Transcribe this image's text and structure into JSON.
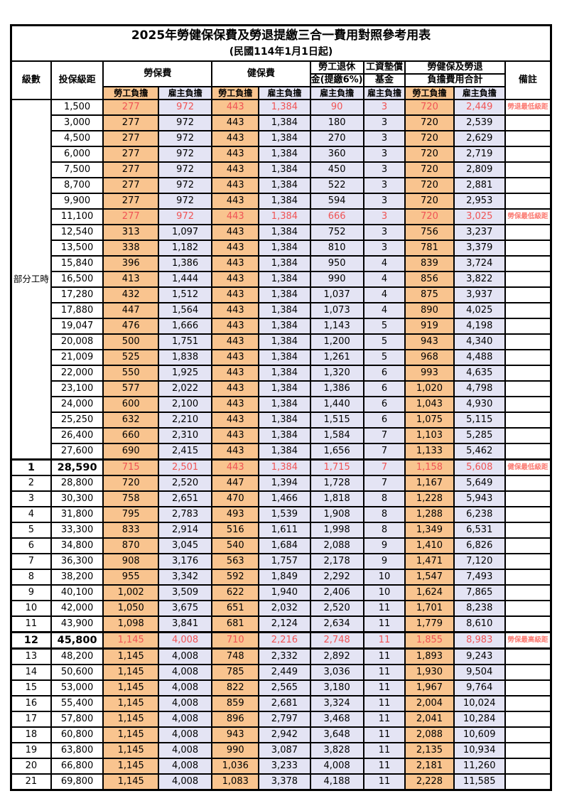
{
  "title": "2025年勞健保保費及勞退提繳三合一費用對照參考用表",
  "subtitle": "(民國114年1月1日起)",
  "colors": {
    "employee_bg": "#F9C48F",
    "employer_bg": "#E4E4F4",
    "highlight_text": "#F05455",
    "note_text": "#FB7B72"
  },
  "table": {
    "header": {
      "level": "級數",
      "bracket": "投保級距",
      "labor_insurance": "勞保費",
      "health_insurance": "健保費",
      "pension_line1": "勞工退休",
      "pension_line2": "金(提繳6%)",
      "wage_fund_line1": "工資墊償",
      "wage_fund_line2": "基金",
      "total_line1": "勞健保及勞退",
      "total_line2": "負擔費用合計",
      "note": "備註"
    },
    "subheader": {
      "employee": "勞工負擔",
      "employer": "雇主負擔"
    },
    "part_time_label": "部分工時",
    "rows": [
      {
        "level": "",
        "bracket": "1,500",
        "values": [
          "277",
          "972",
          "443",
          "1,384",
          "90",
          "3",
          "720",
          "2,449"
        ],
        "note": "勞退最低級距",
        "red": true,
        "emph": false,
        "section": false
      },
      {
        "level": "",
        "bracket": "3,000",
        "values": [
          "277",
          "972",
          "443",
          "1,384",
          "180",
          "3",
          "720",
          "2,539"
        ],
        "note": "",
        "red": false,
        "emph": false,
        "section": false
      },
      {
        "level": "",
        "bracket": "4,500",
        "values": [
          "277",
          "972",
          "443",
          "1,384",
          "270",
          "3",
          "720",
          "2,629"
        ],
        "note": "",
        "red": false,
        "emph": false,
        "section": false
      },
      {
        "level": "",
        "bracket": "6,000",
        "values": [
          "277",
          "972",
          "443",
          "1,384",
          "360",
          "3",
          "720",
          "2,719"
        ],
        "note": "",
        "red": false,
        "emph": false,
        "section": false
      },
      {
        "level": "",
        "bracket": "7,500",
        "values": [
          "277",
          "972",
          "443",
          "1,384",
          "450",
          "3",
          "720",
          "2,809"
        ],
        "note": "",
        "red": false,
        "emph": false,
        "section": false
      },
      {
        "level": "",
        "bracket": "8,700",
        "values": [
          "277",
          "972",
          "443",
          "1,384",
          "522",
          "3",
          "720",
          "2,881"
        ],
        "note": "",
        "red": false,
        "emph": false,
        "section": false
      },
      {
        "level": "",
        "bracket": "9,900",
        "values": [
          "277",
          "972",
          "443",
          "1,384",
          "594",
          "3",
          "720",
          "2,953"
        ],
        "note": "",
        "red": false,
        "emph": false,
        "section": false
      },
      {
        "level": "",
        "bracket": "11,100",
        "values": [
          "277",
          "972",
          "443",
          "1,384",
          "666",
          "3",
          "720",
          "3,025"
        ],
        "note": "勞保最低級距",
        "red": true,
        "emph": false,
        "section": false
      },
      {
        "level": "",
        "bracket": "12,540",
        "values": [
          "313",
          "1,097",
          "443",
          "1,384",
          "752",
          "3",
          "756",
          "3,237"
        ],
        "note": "",
        "red": false,
        "emph": false,
        "section": false
      },
      {
        "level": "",
        "bracket": "13,500",
        "values": [
          "338",
          "1,182",
          "443",
          "1,384",
          "810",
          "3",
          "781",
          "3,379"
        ],
        "note": "",
        "red": false,
        "emph": false,
        "section": false
      },
      {
        "level": "",
        "bracket": "15,840",
        "values": [
          "396",
          "1,386",
          "443",
          "1,384",
          "950",
          "4",
          "839",
          "3,724"
        ],
        "note": "",
        "red": false,
        "emph": false,
        "section": false
      },
      {
        "level": "",
        "bracket": "16,500",
        "values": [
          "413",
          "1,444",
          "443",
          "1,384",
          "990",
          "4",
          "856",
          "3,822"
        ],
        "note": "",
        "red": false,
        "emph": false,
        "section": false
      },
      {
        "level": "",
        "bracket": "17,280",
        "values": [
          "432",
          "1,512",
          "443",
          "1,384",
          "1,037",
          "4",
          "875",
          "3,937"
        ],
        "note": "",
        "red": false,
        "emph": false,
        "section": false
      },
      {
        "level": "",
        "bracket": "17,880",
        "values": [
          "447",
          "1,564",
          "443",
          "1,384",
          "1,073",
          "4",
          "890",
          "4,025"
        ],
        "note": "",
        "red": false,
        "emph": false,
        "section": false
      },
      {
        "level": "",
        "bracket": "19,047",
        "values": [
          "476",
          "1,666",
          "443",
          "1,384",
          "1,143",
          "5",
          "919",
          "4,198"
        ],
        "note": "",
        "red": false,
        "emph": false,
        "section": false
      },
      {
        "level": "",
        "bracket": "20,008",
        "values": [
          "500",
          "1,751",
          "443",
          "1,384",
          "1,200",
          "5",
          "943",
          "4,340"
        ],
        "note": "",
        "red": false,
        "emph": false,
        "section": false
      },
      {
        "level": "",
        "bracket": "21,009",
        "values": [
          "525",
          "1,838",
          "443",
          "1,384",
          "1,261",
          "5",
          "968",
          "4,488"
        ],
        "note": "",
        "red": false,
        "emph": false,
        "section": false
      },
      {
        "level": "",
        "bracket": "22,000",
        "values": [
          "550",
          "1,925",
          "443",
          "1,384",
          "1,320",
          "6",
          "993",
          "4,635"
        ],
        "note": "",
        "red": false,
        "emph": false,
        "section": false
      },
      {
        "level": "",
        "bracket": "23,100",
        "values": [
          "577",
          "2,022",
          "443",
          "1,384",
          "1,386",
          "6",
          "1,020",
          "4,798"
        ],
        "note": "",
        "red": false,
        "emph": false,
        "section": false
      },
      {
        "level": "",
        "bracket": "24,000",
        "values": [
          "600",
          "2,100",
          "443",
          "1,384",
          "1,440",
          "6",
          "1,043",
          "4,930"
        ],
        "note": "",
        "red": false,
        "emph": false,
        "section": false
      },
      {
        "level": "",
        "bracket": "25,250",
        "values": [
          "632",
          "2,210",
          "443",
          "1,384",
          "1,515",
          "6",
          "1,075",
          "5,115"
        ],
        "note": "",
        "red": false,
        "emph": false,
        "section": false
      },
      {
        "level": "",
        "bracket": "26,400",
        "values": [
          "660",
          "2,310",
          "443",
          "1,384",
          "1,584",
          "7",
          "1,103",
          "5,285"
        ],
        "note": "",
        "red": false,
        "emph": false,
        "section": false
      },
      {
        "level": "",
        "bracket": "27,600",
        "values": [
          "690",
          "2,415",
          "443",
          "1,384",
          "1,656",
          "7",
          "1,133",
          "5,462"
        ],
        "note": "",
        "red": false,
        "emph": false,
        "section": false
      },
      {
        "level": "1",
        "bracket": "28,590",
        "values": [
          "715",
          "2,501",
          "443",
          "1,384",
          "1,715",
          "7",
          "1,158",
          "5,608"
        ],
        "note": "健保最低級距",
        "red": true,
        "emph": true,
        "section": true
      },
      {
        "level": "2",
        "bracket": "28,800",
        "values": [
          "720",
          "2,520",
          "447",
          "1,394",
          "1,728",
          "7",
          "1,167",
          "5,649"
        ],
        "note": "",
        "red": false,
        "emph": false,
        "section": false
      },
      {
        "level": "3",
        "bracket": "30,300",
        "values": [
          "758",
          "2,651",
          "470",
          "1,466",
          "1,818",
          "8",
          "1,228",
          "5,943"
        ],
        "note": "",
        "red": false,
        "emph": false,
        "section": false
      },
      {
        "level": "4",
        "bracket": "31,800",
        "values": [
          "795",
          "2,783",
          "493",
          "1,539",
          "1,908",
          "8",
          "1,288",
          "6,238"
        ],
        "note": "",
        "red": false,
        "emph": false,
        "section": false
      },
      {
        "level": "5",
        "bracket": "33,300",
        "values": [
          "833",
          "2,914",
          "516",
          "1,611",
          "1,998",
          "8",
          "1,349",
          "6,531"
        ],
        "note": "",
        "red": false,
        "emph": false,
        "section": false
      },
      {
        "level": "6",
        "bracket": "34,800",
        "values": [
          "870",
          "3,045",
          "540",
          "1,684",
          "2,088",
          "9",
          "1,410",
          "6,826"
        ],
        "note": "",
        "red": false,
        "emph": false,
        "section": false
      },
      {
        "level": "7",
        "bracket": "36,300",
        "values": [
          "908",
          "3,176",
          "563",
          "1,757",
          "2,178",
          "9",
          "1,471",
          "7,120"
        ],
        "note": "",
        "red": false,
        "emph": false,
        "section": false
      },
      {
        "level": "8",
        "bracket": "38,200",
        "values": [
          "955",
          "3,342",
          "592",
          "1,849",
          "2,292",
          "10",
          "1,547",
          "7,493"
        ],
        "note": "",
        "red": false,
        "emph": false,
        "section": false
      },
      {
        "level": "9",
        "bracket": "40,100",
        "values": [
          "1,002",
          "3,509",
          "622",
          "1,940",
          "2,406",
          "10",
          "1,624",
          "7,865"
        ],
        "note": "",
        "red": false,
        "emph": false,
        "section": false
      },
      {
        "level": "10",
        "bracket": "42,000",
        "values": [
          "1,050",
          "3,675",
          "651",
          "2,032",
          "2,520",
          "11",
          "1,701",
          "8,238"
        ],
        "note": "",
        "red": false,
        "emph": false,
        "section": false
      },
      {
        "level": "11",
        "bracket": "43,900",
        "values": [
          "1,098",
          "3,841",
          "681",
          "2,124",
          "2,634",
          "11",
          "1,779",
          "8,610"
        ],
        "note": "",
        "red": false,
        "emph": false,
        "section": false
      },
      {
        "level": "12",
        "bracket": "45,800",
        "values": [
          "1,145",
          "4,008",
          "710",
          "2,216",
          "2,748",
          "11",
          "1,855",
          "8,983"
        ],
        "note": "勞保最高級距",
        "red": true,
        "emph": true,
        "section": true,
        "section_bottom": true
      },
      {
        "level": "13",
        "bracket": "48,200",
        "values": [
          "1,145",
          "4,008",
          "748",
          "2,332",
          "2,892",
          "11",
          "1,893",
          "9,243"
        ],
        "note": "",
        "red": false,
        "emph": false,
        "section": false
      },
      {
        "level": "14",
        "bracket": "50,600",
        "values": [
          "1,145",
          "4,008",
          "785",
          "2,449",
          "3,036",
          "11",
          "1,930",
          "9,504"
        ],
        "note": "",
        "red": false,
        "emph": false,
        "section": false
      },
      {
        "level": "15",
        "bracket": "53,000",
        "values": [
          "1,145",
          "4,008",
          "822",
          "2,565",
          "3,180",
          "11",
          "1,967",
          "9,764"
        ],
        "note": "",
        "red": false,
        "emph": false,
        "section": false
      },
      {
        "level": "16",
        "bracket": "55,400",
        "values": [
          "1,145",
          "4,008",
          "859",
          "2,681",
          "3,324",
          "11",
          "2,004",
          "10,024"
        ],
        "note": "",
        "red": false,
        "emph": false,
        "section": false
      },
      {
        "level": "17",
        "bracket": "57,800",
        "values": [
          "1,145",
          "4,008",
          "896",
          "2,797",
          "3,468",
          "11",
          "2,041",
          "10,284"
        ],
        "note": "",
        "red": false,
        "emph": false,
        "section": false
      },
      {
        "level": "18",
        "bracket": "60,800",
        "values": [
          "1,145",
          "4,008",
          "943",
          "2,942",
          "3,648",
          "11",
          "2,088",
          "10,609"
        ],
        "note": "",
        "red": false,
        "emph": false,
        "section": false
      },
      {
        "level": "19",
        "bracket": "63,800",
        "values": [
          "1,145",
          "4,008",
          "990",
          "3,087",
          "3,828",
          "11",
          "2,135",
          "10,934"
        ],
        "note": "",
        "red": false,
        "emph": false,
        "section": false
      },
      {
        "level": "20",
        "bracket": "66,800",
        "values": [
          "1,145",
          "4,008",
          "1,036",
          "3,233",
          "4,008",
          "11",
          "2,181",
          "11,260"
        ],
        "note": "",
        "red": false,
        "emph": false,
        "section": false
      },
      {
        "level": "21",
        "bracket": "69,800",
        "values": [
          "1,145",
          "4,008",
          "1,083",
          "3,378",
          "4,188",
          "11",
          "2,228",
          "11,585"
        ],
        "note": "",
        "red": false,
        "emph": false,
        "section": false
      }
    ]
  }
}
